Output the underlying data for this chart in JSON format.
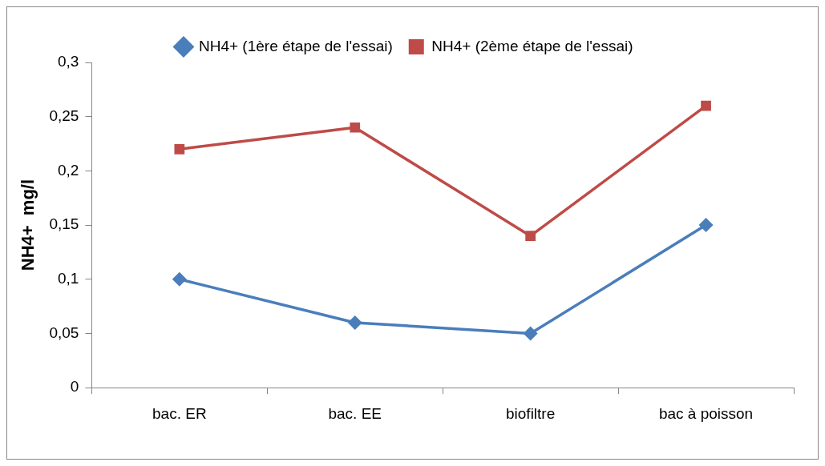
{
  "chart_data": {
    "type": "line",
    "ylabel": "NH4+  mg/l",
    "categories": [
      "bac. ER",
      "bac. EE",
      "biofiltre",
      "bac à poisson"
    ],
    "series": [
      {
        "name": "NH4+ (1ère étape de l'essai)",
        "color": "#4a7ebb",
        "marker": "diamond",
        "values": [
          0.1,
          0.06,
          0.05,
          0.15
        ]
      },
      {
        "name": "NH4+ (2ème étape de l'essai)",
        "color": "#be4b48",
        "marker": "square",
        "values": [
          0.22,
          0.24,
          0.14,
          0.26
        ]
      }
    ],
    "ylim": [
      0,
      0.3
    ],
    "yticks": [
      0,
      {
        "value": 0.05,
        "label": "0,05"
      },
      {
        "value": 0.1,
        "label": "0,1"
      },
      {
        "value": 0.15,
        "label": "0,15"
      },
      {
        "value": 0.2,
        "label": "0,2"
      },
      {
        "value": 0.25,
        "label": "0,25"
      },
      {
        "value": 0.3,
        "label": "0,3"
      }
    ],
    "grid": false,
    "legend": "top",
    "line_style": "solid"
  }
}
